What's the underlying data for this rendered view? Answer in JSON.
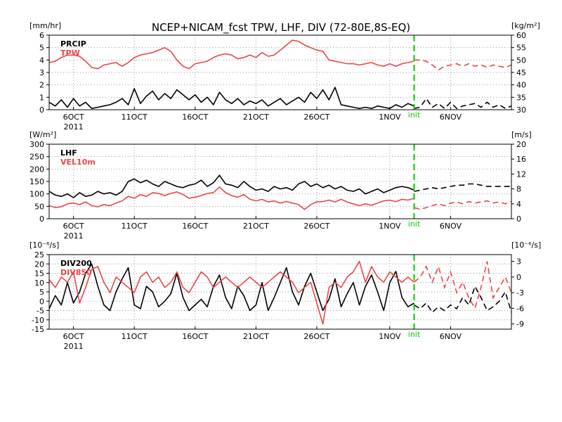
{
  "title": "NCEP+NICAM_fcst TPW, LHF, DIV (72-80E,8S-EQ)",
  "colors": {
    "black": "#000000",
    "red": "#e8474a",
    "green": "#00cc00",
    "grid": "#999999"
  },
  "x_axis": {
    "day_range": [
      0,
      38
    ],
    "ticks": [
      {
        "day": 2,
        "label": "6OCT"
      },
      {
        "day": 7,
        "label": "11OCT"
      },
      {
        "day": 12,
        "label": "16OCT"
      },
      {
        "day": 17,
        "label": "21OCT"
      },
      {
        "day": 22,
        "label": "26OCT"
      },
      {
        "day": 28,
        "label": "1NOV"
      },
      {
        "day": 33,
        "label": "6NOV"
      }
    ],
    "year_label": "2011"
  },
  "init": {
    "day": 30,
    "label": "init"
  },
  "chart_data": [
    {
      "type": "line",
      "left_unit": "[mm/hr]",
      "right_unit": "[kg/m²]",
      "ylim_left": [
        0,
        6
      ],
      "ylim_right": [
        30,
        60
      ],
      "left_ticks": [
        0,
        1,
        2,
        3,
        4,
        5,
        6
      ],
      "right_ticks": [
        30,
        35,
        40,
        45,
        50,
        55,
        60
      ],
      "series": [
        {
          "name": "PRCIP",
          "axis": "left",
          "color": "#000000",
          "x": [
            0,
            0.5,
            1,
            1.5,
            2,
            2.5,
            3,
            3.5,
            4,
            4.5,
            5,
            5.5,
            6,
            6.5,
            7,
            7.5,
            8,
            8.5,
            9,
            9.5,
            10,
            10.5,
            11,
            11.5,
            12,
            12.5,
            13,
            13.5,
            14,
            14.5,
            15,
            15.5,
            16,
            16.5,
            17,
            17.5,
            18,
            18.5,
            19,
            19.5,
            20,
            20.5,
            21,
            21.5,
            22,
            22.5,
            23,
            23.5,
            24,
            24.5,
            25,
            25.5,
            26,
            26.5,
            27,
            27.5,
            28,
            28.5,
            29,
            29.5,
            30
          ],
          "values": [
            0.6,
            0.3,
            0.8,
            0.2,
            0.9,
            0.3,
            0.6,
            0.1,
            0.2,
            0.3,
            0.4,
            0.6,
            0.9,
            0.4,
            1.7,
            0.5,
            1.1,
            1.5,
            0.8,
            1.3,
            0.9,
            1.6,
            1.2,
            0.8,
            1.2,
            0.6,
            1.0,
            0.4,
            1.4,
            0.8,
            0.5,
            0.9,
            0.4,
            0.7,
            0.5,
            0.8,
            0.3,
            0.6,
            0.9,
            0.4,
            0.7,
            1.0,
            0.6,
            1.4,
            0.9,
            1.6,
            0.8,
            1.8,
            0.4,
            0.3,
            0.2,
            0.1,
            0.2,
            0.1,
            0.3,
            0.2,
            0.1,
            0.4,
            0.2,
            0.5,
            0.3
          ],
          "fx": [
            30,
            30.5,
            31,
            31.5,
            32,
            32.5,
            33,
            33.5,
            34,
            34.5,
            35,
            35.5,
            36,
            36.5,
            37,
            37.5,
            38
          ],
          "fvalues": [
            0.1,
            0.2,
            0.9,
            0.2,
            0.5,
            0.1,
            0.6,
            0.1,
            0.3,
            0.4,
            0.5,
            0.2,
            0.6,
            0.2,
            0.4,
            0.1,
            0.3
          ]
        },
        {
          "name": "TPW",
          "axis": "right",
          "color": "#e8474a",
          "x": [
            0,
            0.5,
            1,
            1.5,
            2,
            2.5,
            3,
            3.5,
            4,
            4.5,
            5,
            5.5,
            6,
            6.5,
            7,
            7.5,
            8,
            8.5,
            9,
            9.5,
            10,
            10.5,
            11,
            11.5,
            12,
            12.5,
            13,
            13.5,
            14,
            14.5,
            15,
            15.5,
            16,
            16.5,
            17,
            17.5,
            18,
            18.5,
            19,
            19.5,
            20,
            20.5,
            21,
            21.5,
            22,
            22.5,
            23,
            23.5,
            24,
            24.5,
            25,
            25.5,
            26,
            26.5,
            27,
            27.5,
            28,
            28.5,
            29,
            29.5,
            30
          ],
          "values": [
            49,
            49.5,
            51,
            52,
            52,
            51.5,
            49.5,
            47,
            46.5,
            48,
            48.5,
            49,
            47.5,
            49,
            51,
            52,
            52.5,
            53,
            54,
            55,
            53.5,
            50,
            47.5,
            46.5,
            48.5,
            49,
            49.5,
            51,
            52,
            52.5,
            52,
            50.5,
            51,
            52,
            51,
            53,
            51.5,
            52,
            54,
            56,
            58,
            57.5,
            56,
            55,
            54,
            53.5,
            50,
            49.5,
            49,
            48.5,
            48.5,
            48,
            48.5,
            49,
            48,
            47.5,
            48.5,
            47.5,
            48.5,
            49,
            49.5
          ],
          "fx": [
            30,
            30.5,
            31,
            31.5,
            32,
            32.5,
            33,
            33.5,
            34,
            34.5,
            35,
            35.5,
            36,
            36.5,
            37,
            37.5,
            38
          ],
          "fvalues": [
            50,
            50,
            49.5,
            48,
            46,
            47.5,
            48,
            48.5,
            47.5,
            48.5,
            47.5,
            48,
            47,
            48,
            47.5,
            47,
            48
          ]
        }
      ]
    },
    {
      "type": "line",
      "left_unit": "[W/m²]",
      "right_unit": "[m/s]",
      "ylim_left": [
        0,
        300
      ],
      "ylim_right": [
        0,
        20
      ],
      "left_ticks": [
        0,
        50,
        100,
        150,
        200,
        250,
        300
      ],
      "right_ticks": [
        0,
        4,
        8,
        12,
        16,
        20
      ],
      "series": [
        {
          "name": "LHF",
          "axis": "left",
          "color": "#000000",
          "x": [
            0,
            0.5,
            1,
            1.5,
            2,
            2.5,
            3,
            3.5,
            4,
            4.5,
            5,
            5.5,
            6,
            6.5,
            7,
            7.5,
            8,
            8.5,
            9,
            9.5,
            10,
            10.5,
            11,
            11.5,
            12,
            12.5,
            13,
            13.5,
            14,
            14.5,
            15,
            15.5,
            16,
            16.5,
            17,
            17.5,
            18,
            18.5,
            19,
            19.5,
            20,
            20.5,
            21,
            21.5,
            22,
            22.5,
            23,
            23.5,
            24,
            24.5,
            25,
            25.5,
            26,
            26.5,
            27,
            27.5,
            28,
            28.5,
            29,
            29.5,
            30
          ],
          "values": [
            110,
            95,
            90,
            100,
            85,
            105,
            90,
            95,
            110,
            100,
            105,
            95,
            110,
            150,
            160,
            145,
            155,
            140,
            130,
            150,
            140,
            130,
            125,
            135,
            140,
            155,
            130,
            145,
            175,
            140,
            135,
            125,
            150,
            130,
            115,
            120,
            110,
            130,
            120,
            125,
            115,
            140,
            150,
            130,
            140,
            125,
            135,
            120,
            130,
            115,
            110,
            120,
            100,
            110,
            120,
            105,
            115,
            125,
            130,
            125,
            115
          ],
          "fx": [
            30,
            30.5,
            31,
            31.5,
            32,
            32.5,
            33,
            33.5,
            34,
            34.5,
            35,
            35.5,
            36,
            36.5,
            37,
            37.5,
            38
          ],
          "fvalues": [
            110,
            115,
            120,
            125,
            120,
            125,
            130,
            135,
            135,
            140,
            140,
            135,
            130,
            130,
            130,
            130,
            130
          ]
        },
        {
          "name": "VEL10m",
          "axis": "right",
          "color": "#e8474a",
          "x": [
            0,
            0.5,
            1,
            1.5,
            2,
            2.5,
            3,
            3.5,
            4,
            4.5,
            5,
            5.5,
            6,
            6.5,
            7,
            7.5,
            8,
            8.5,
            9,
            9.5,
            10,
            10.5,
            11,
            11.5,
            12,
            12.5,
            13,
            13.5,
            14,
            14.5,
            15,
            15.5,
            16,
            16.5,
            17,
            17.5,
            18,
            18.5,
            19,
            19.5,
            20,
            20.5,
            21,
            21.5,
            22,
            22.5,
            23,
            23.5,
            24,
            24.5,
            25,
            25.5,
            26,
            26.5,
            27,
            27.5,
            28,
            28.5,
            29,
            29.5,
            30
          ],
          "values": [
            3.5,
            3,
            3.2,
            4,
            4.2,
            3.8,
            4.5,
            3.5,
            3.2,
            3.8,
            3.5,
            4.2,
            4.8,
            6,
            5.5,
            6.5,
            6,
            7,
            6.8,
            6.2,
            6.8,
            7.2,
            6.5,
            5.5,
            5.8,
            6.2,
            6.8,
            7,
            8.5,
            7,
            6.2,
            5.8,
            6.5,
            5.2,
            4.8,
            5.2,
            4.5,
            4.8,
            4.2,
            4.6,
            4.2,
            3.8,
            2.5,
            3.8,
            4.5,
            4.6,
            5,
            4.5,
            5.2,
            4.5,
            4,
            3.5,
            4,
            3.6,
            4.2,
            4.8,
            5,
            4.6,
            5.2,
            5,
            5.5
          ],
          "fx": [
            30,
            30.5,
            31,
            31.5,
            32,
            32.5,
            33,
            33.5,
            34,
            34.5,
            35,
            35.5,
            36,
            36.5,
            37,
            37.5,
            38
          ],
          "fvalues": [
            3,
            2.5,
            3,
            3.5,
            4,
            3.5,
            4.2,
            4.5,
            4,
            4.6,
            4.2,
            4.5,
            4.8,
            4.2,
            4.5,
            4,
            4.6
          ]
        }
      ]
    },
    {
      "type": "line",
      "left_unit": "[10⁻⁶/s]",
      "right_unit": "[10⁻⁶/s]",
      "ylim_left": [
        -15,
        25
      ],
      "ylim_right": [
        -10,
        4.3
      ],
      "left_ticks": [
        -15,
        -10,
        -5,
        0,
        5,
        10,
        15,
        20,
        25
      ],
      "right_ticks": [
        -9,
        -6,
        -3,
        0,
        3
      ],
      "series": [
        {
          "name": "DIV200",
          "axis": "left",
          "color": "#000000",
          "x": [
            0,
            0.5,
            1,
            1.5,
            2,
            2.5,
            3,
            3.5,
            4,
            4.5,
            5,
            5.5,
            6,
            6.5,
            7,
            7.5,
            8,
            8.5,
            9,
            9.5,
            10,
            10.5,
            11,
            11.5,
            12,
            12.5,
            13,
            13.5,
            14,
            14.5,
            15,
            15.5,
            16,
            16.5,
            17,
            17.5,
            18,
            18.5,
            19,
            19.5,
            20,
            20.5,
            21,
            21.5,
            22,
            22.5,
            23,
            23.5,
            24,
            24.5,
            25,
            25.5,
            26,
            26.5,
            27,
            27.5,
            28,
            28.5,
            29,
            29.5,
            30
          ],
          "values": [
            -4,
            3,
            -2,
            10,
            -1,
            5,
            15,
            20,
            8,
            -2,
            -5,
            5,
            12,
            18,
            -2,
            -4,
            8,
            5,
            -3,
            0,
            4,
            15,
            2,
            -5,
            -2,
            1,
            -3,
            8,
            14,
            2,
            -4,
            8,
            3,
            -5,
            -2,
            10,
            -5,
            2,
            10,
            18,
            5,
            -2,
            8,
            15,
            5,
            -5,
            1,
            12,
            -3,
            4,
            10,
            -2,
            8,
            14,
            5,
            -5,
            10,
            16,
            2,
            -3,
            -1
          ],
          "fx": [
            30,
            30.5,
            31,
            31.5,
            32,
            32.5,
            33,
            33.5,
            34,
            34.5,
            35,
            35.5,
            36,
            36.5,
            37,
            37.5,
            38
          ],
          "fvalues": [
            -2,
            -4,
            -1,
            -6,
            -3,
            -5,
            -2,
            -4,
            2,
            -2,
            8,
            2,
            -5,
            -3,
            0,
            5,
            -6
          ]
        },
        {
          "name": "DIV850",
          "axis": "right",
          "color": "#e8474a",
          "x": [
            0,
            0.5,
            1,
            1.5,
            2,
            2.5,
            3,
            3.5,
            4,
            4.5,
            5,
            5.5,
            6,
            6.5,
            7,
            7.5,
            8,
            8.5,
            9,
            9.5,
            10,
            10.5,
            11,
            11.5,
            12,
            12.5,
            13,
            13.5,
            14,
            14.5,
            15,
            15.5,
            16,
            16.5,
            17,
            17.5,
            18,
            18.5,
            19,
            19.5,
            20,
            20.5,
            21,
            21.5,
            22,
            22.5,
            23,
            23.5,
            24,
            24.5,
            25,
            25.5,
            26,
            26.5,
            27,
            27.5,
            28,
            28.5,
            29,
            29.5,
            30
          ],
          "values": [
            -0.5,
            -2,
            0,
            -1,
            1,
            -5,
            -2,
            1.5,
            2,
            -1,
            -3,
            0,
            -1,
            -2,
            -3,
            0,
            1,
            -1,
            0,
            -2,
            -1,
            1,
            -2,
            -3,
            -1,
            1,
            0,
            -2,
            -1,
            0,
            -1,
            -2,
            -1,
            0,
            -1,
            -2,
            -1,
            0,
            1,
            0,
            -1,
            -3,
            -2,
            -1,
            -5,
            -9,
            -2,
            -1,
            -2,
            0,
            1,
            3,
            -1,
            2,
            0,
            -1,
            1,
            0,
            -1,
            0,
            -1
          ],
          "fx": [
            30,
            30.5,
            31,
            31.5,
            32,
            32.5,
            33,
            33.5,
            34,
            34.5,
            35,
            35.5,
            36,
            36.5,
            37,
            37.5,
            38
          ],
          "fvalues": [
            -1,
            0,
            2,
            -1,
            2,
            -2,
            1,
            -3,
            -1,
            -4,
            -6,
            -2,
            3,
            -4,
            -2,
            0,
            -3
          ]
        }
      ]
    }
  ]
}
